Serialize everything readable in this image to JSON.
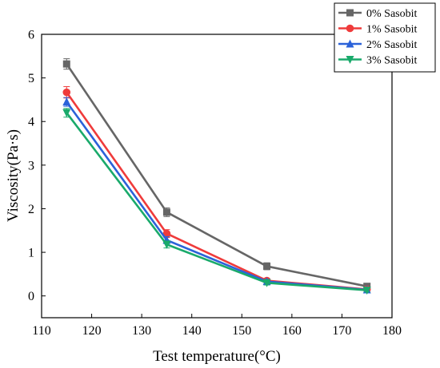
{
  "chart_data": {
    "type": "line",
    "xlabel": "Test temperature(°C)",
    "ylabel": "Viscosity(Pa·s)",
    "xlim": [
      110,
      180
    ],
    "ylim": [
      -0.5,
      6
    ],
    "xticks": [
      110,
      120,
      130,
      140,
      150,
      160,
      170,
      180
    ],
    "yticks": [
      0,
      1,
      2,
      3,
      4,
      5,
      6
    ],
    "x": [
      115,
      135,
      155,
      175
    ],
    "legend_position": "top-right",
    "grid": false,
    "series": [
      {
        "name": "0% Sasobit",
        "values": [
          5.32,
          1.92,
          0.68,
          0.22
        ],
        "errors": [
          0.12,
          0.1,
          0.08,
          0.05
        ],
        "color": "#666666",
        "marker": "square"
      },
      {
        "name": "1% Sasobit",
        "values": [
          4.67,
          1.43,
          0.35,
          0.15
        ],
        "errors": [
          0.13,
          0.09,
          0.05,
          0.04
        ],
        "color": "#ef3b3b",
        "marker": "circle"
      },
      {
        "name": "2% Sasobit",
        "values": [
          4.45,
          1.28,
          0.33,
          0.14
        ],
        "errors": [
          0.1,
          0.08,
          0.05,
          0.04
        ],
        "color": "#2b62d9",
        "marker": "triangle-up"
      },
      {
        "name": "3% Sasobit",
        "values": [
          4.2,
          1.18,
          0.3,
          0.13
        ],
        "errors": [
          0.1,
          0.08,
          0.05,
          0.04
        ],
        "color": "#1aaa6b",
        "marker": "triangle-down"
      }
    ]
  }
}
